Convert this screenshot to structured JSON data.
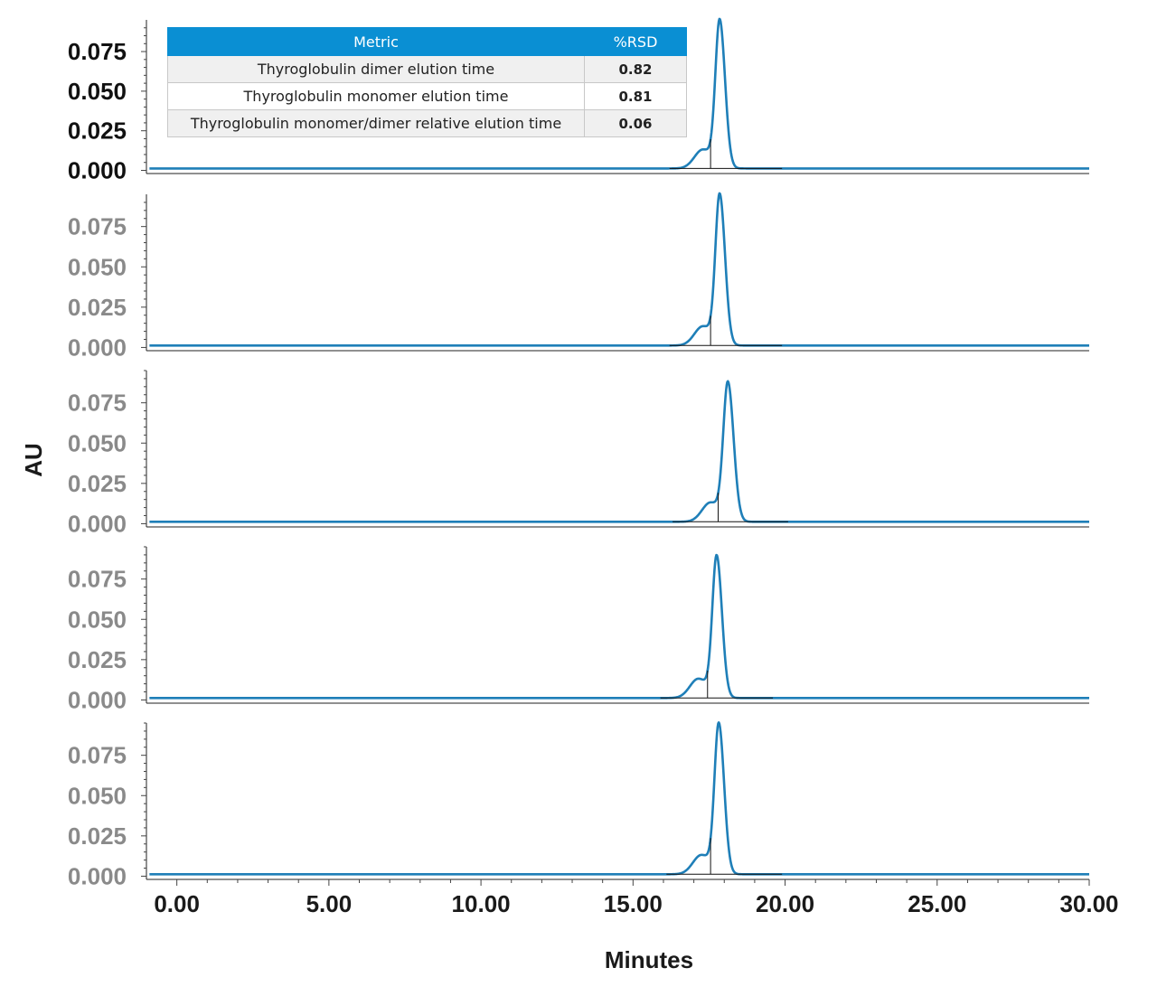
{
  "chart_data": {
    "type": "line",
    "x_axis": {
      "label": "Minutes",
      "range": [
        -1,
        30
      ],
      "tick_values": [
        0,
        5,
        10,
        15,
        20,
        25,
        30
      ],
      "tick_labels": [
        "0.00",
        "5.00",
        "10.00",
        "15.00",
        "20.00",
        "25.00",
        "30.00"
      ]
    },
    "y_axis": {
      "label": "AU",
      "range": [
        -0.002,
        0.095
      ],
      "tick_values": [
        0,
        0.025,
        0.05,
        0.075
      ],
      "tick_labels": [
        "0.000",
        "0.025",
        "0.050",
        "0.075"
      ]
    },
    "line_color": "#1f7fb8",
    "first_panel_tick_color": "#111111",
    "other_panels_tick_color": "#8a8a8a",
    "panels": [
      {
        "baseline": 0.0012,
        "peaks": [
          {
            "rt": 17.3,
            "height": 0.012,
            "width": 0.28
          },
          {
            "rt": 17.85,
            "height": 0.091,
            "width": 0.14
          }
        ],
        "integration": {
          "start": 16.2,
          "split": 17.55,
          "end": 19.9
        }
      },
      {
        "baseline": 0.0012,
        "peaks": [
          {
            "rt": 17.3,
            "height": 0.012,
            "width": 0.28
          },
          {
            "rt": 17.85,
            "height": 0.091,
            "width": 0.14
          }
        ],
        "integration": {
          "start": 16.2,
          "split": 17.55,
          "end": 19.9
        }
      },
      {
        "baseline": 0.0012,
        "peaks": [
          {
            "rt": 17.55,
            "height": 0.012,
            "width": 0.28
          },
          {
            "rt": 18.12,
            "height": 0.084,
            "width": 0.15
          }
        ],
        "integration": {
          "start": 16.3,
          "split": 17.8,
          "end": 20.1
        }
      },
      {
        "baseline": 0.0012,
        "peaks": [
          {
            "rt": 17.15,
            "height": 0.012,
            "width": 0.28
          },
          {
            "rt": 17.75,
            "height": 0.086,
            "width": 0.14
          }
        ],
        "integration": {
          "start": 15.9,
          "split": 17.45,
          "end": 19.6
        }
      },
      {
        "baseline": 0.0012,
        "peaks": [
          {
            "rt": 17.25,
            "height": 0.012,
            "width": 0.28
          },
          {
            "rt": 17.82,
            "height": 0.091,
            "width": 0.14
          }
        ],
        "integration": {
          "start": 16.1,
          "split": 17.55,
          "end": 19.9
        }
      }
    ]
  },
  "table": {
    "headers": [
      "Metric",
      "%RSD"
    ],
    "rows": [
      {
        "metric": "Thyroglobulin dimer elution time",
        "rsd": "0.82"
      },
      {
        "metric": "Thyroglobulin monomer elution time",
        "rsd": "0.81"
      },
      {
        "metric": "Thyroglobulin monomer/dimer relative elution time",
        "rsd": "0.06"
      }
    ],
    "header_color": "#0a8fd3"
  }
}
